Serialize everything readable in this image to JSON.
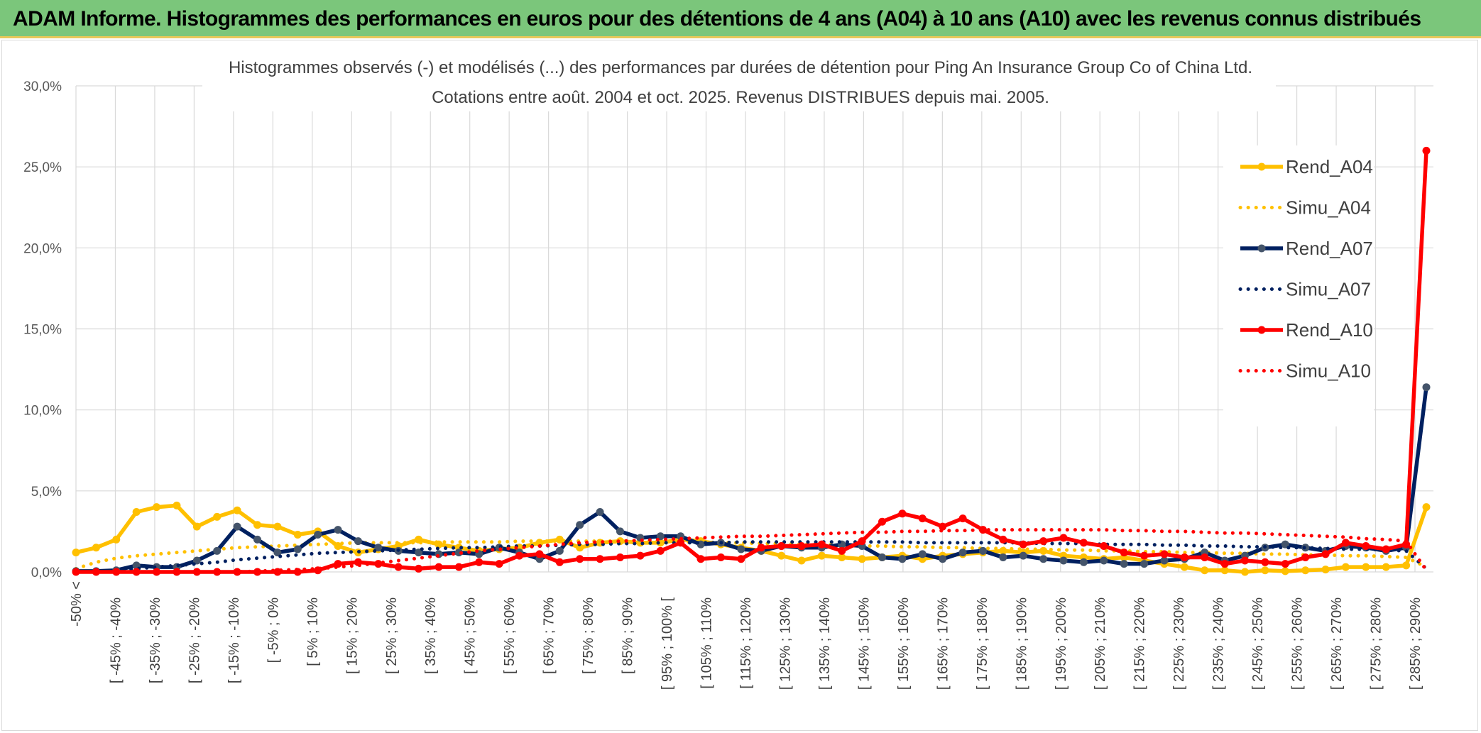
{
  "banner": {
    "title": "ADAM Informe. Histogrammes des performances en euros pour des détentions de 4 ans (A04) à 10 ans (A10) avec les revenus connus distribués"
  },
  "colors": {
    "banner_bg": "#7bc67b",
    "A04": "#ffc000",
    "A07": "#002060",
    "A10": "#ff0000",
    "grid": "#d9d9d9"
  },
  "chart_data": {
    "type": "line",
    "title": "Histogrammes observés (-) et modélisés (...) des performances par durées de détention pour Ping An Insurance Group Co of China Ltd.",
    "subtitle": "Cotations entre août. 2004 et oct. 2025. Revenus DISTRIBUES depuis mai. 2005.",
    "xlabel": "",
    "ylabel": "",
    "ylim": [
      0,
      30
    ],
    "yticks": [
      "0,0%",
      "5,0%",
      "10,0%",
      "15,0%",
      "20,0%",
      "25,0%",
      "30,0%"
    ],
    "grid": true,
    "legend_position": "right",
    "x_labels": [
      "-50% <",
      "[ -45% ; -40%",
      "[ -35% ; -30%",
      "[ -25% ; -20%",
      "[ -15% ; -10%",
      "[ -5% ; 0%",
      "[ 5% ; 10%",
      "[ 15% ; 20%",
      "[ 25% ; 30%",
      "[ 35% ; 40%",
      "[ 45% ; 50%",
      "[ 55% ; 60%",
      "[ 65% ; 70%",
      "[ 75% ; 80%",
      "[ 85% ; 90%",
      "[ 95% ; 100% [",
      "[ 105% ; 110%",
      "[ 115% ; 120%",
      "[ 125% ; 130%",
      "[ 135% ; 140%",
      "[ 145% ; 150%",
      "[ 155% ; 160%",
      "[ 165% ; 170%",
      "[ 175% ; 180%",
      "[ 185% ; 190%",
      "[ 195% ; 200%",
      "[ 205% ; 210%",
      "[ 215% ; 220%",
      "[ 225% ; 230%",
      "[ 235% ; 240%",
      "[ 245% ; 250%",
      "[ 255% ; 260%",
      "[ 265% ; 270%",
      "[ 275% ; 280%",
      "[ 285% ; 290%"
    ],
    "series": [
      {
        "name": "Rend_A04",
        "style": "solid",
        "color": "#ffc000",
        "values": [
          1.2,
          1.5,
          2.0,
          3.7,
          4.0,
          4.1,
          2.8,
          3.4,
          3.8,
          2.9,
          2.8,
          2.3,
          2.5,
          1.6,
          1.2,
          1.4,
          1.6,
          2.0,
          1.7,
          1.5,
          1.3,
          1.4,
          1.5,
          1.8,
          2.0,
          1.5,
          1.8,
          1.9,
          1.8,
          1.8,
          2.0,
          1.9,
          1.7,
          1.5,
          1.3,
          1.0,
          0.7,
          1.0,
          0.9,
          0.8,
          0.9,
          1.0,
          0.8,
          1.0,
          1.1,
          1.2,
          1.3,
          1.2,
          1.3,
          1.0,
          0.9,
          0.8,
          0.9,
          0.7,
          0.5,
          0.3,
          0.1,
          0.1,
          0.0,
          0.1,
          0.05,
          0.1,
          0.15,
          0.3,
          0.3,
          0.3,
          0.4,
          4.0
        ]
      },
      {
        "name": "Simu_A04",
        "style": "dotted",
        "color": "#ffc000",
        "values": [
          0.2,
          0.6,
          0.85,
          1.0,
          1.1,
          1.2,
          1.3,
          1.4,
          1.5,
          1.55,
          1.6,
          1.65,
          1.7,
          1.75,
          1.8,
          1.8,
          1.8,
          1.8,
          1.85,
          1.85,
          1.85,
          1.85,
          1.9,
          1.9,
          1.9,
          1.9,
          1.9,
          1.9,
          1.9,
          1.9,
          1.85,
          1.85,
          1.8,
          1.8,
          1.75,
          1.75,
          1.7,
          1.7,
          1.65,
          1.6,
          1.6,
          1.55,
          1.55,
          1.5,
          1.5,
          1.45,
          1.45,
          1.4,
          1.4,
          1.35,
          1.35,
          1.3,
          1.3,
          1.25,
          1.25,
          1.2,
          1.2,
          1.15,
          1.15,
          1.1,
          1.1,
          1.05,
          1.05,
          1.0,
          1.0,
          0.95,
          0.9,
          0.3
        ]
      },
      {
        "name": "Rend_A07",
        "style": "solid",
        "color": "#002060",
        "values": [
          0.05,
          0.05,
          0.1,
          0.4,
          0.3,
          0.3,
          0.7,
          1.3,
          2.8,
          2.0,
          1.2,
          1.4,
          2.3,
          2.6,
          1.9,
          1.5,
          1.3,
          1.2,
          1.1,
          1.2,
          1.1,
          1.5,
          1.2,
          0.8,
          1.3,
          2.9,
          3.7,
          2.5,
          2.1,
          2.2,
          2.2,
          1.7,
          1.8,
          1.4,
          1.3,
          1.6,
          1.5,
          1.5,
          1.7,
          1.6,
          0.9,
          0.8,
          1.1,
          0.8,
          1.2,
          1.3,
          0.9,
          1.0,
          0.8,
          0.7,
          0.6,
          0.7,
          0.5,
          0.5,
          0.7,
          0.8,
          1.2,
          0.7,
          1.0,
          1.5,
          1.7,
          1.5,
          1.3,
          1.6,
          1.5,
          1.3,
          1.5,
          11.4
        ]
      },
      {
        "name": "Simu_A07",
        "style": "dotted",
        "color": "#002060",
        "values": [
          0.0,
          0.05,
          0.1,
          0.2,
          0.3,
          0.4,
          0.5,
          0.6,
          0.75,
          0.85,
          0.95,
          1.05,
          1.15,
          1.2,
          1.25,
          1.3,
          1.35,
          1.4,
          1.45,
          1.5,
          1.5,
          1.55,
          1.6,
          1.6,
          1.65,
          1.7,
          1.7,
          1.75,
          1.75,
          1.8,
          1.8,
          1.8,
          1.8,
          1.85,
          1.85,
          1.85,
          1.85,
          1.85,
          1.85,
          1.85,
          1.85,
          1.85,
          1.8,
          1.8,
          1.8,
          1.8,
          1.8,
          1.8,
          1.75,
          1.75,
          1.75,
          1.7,
          1.7,
          1.7,
          1.65,
          1.65,
          1.6,
          1.6,
          1.55,
          1.55,
          1.5,
          1.5,
          1.45,
          1.4,
          1.4,
          1.35,
          1.3,
          0.2
        ]
      },
      {
        "name": "Rend_A10",
        "style": "solid",
        "color": "#ff0000",
        "values": [
          0.0,
          0.0,
          0.0,
          0.0,
          0.0,
          0.0,
          0.0,
          0.0,
          0.0,
          0.0,
          0.0,
          0.0,
          0.1,
          0.5,
          0.6,
          0.5,
          0.3,
          0.2,
          0.3,
          0.3,
          0.6,
          0.5,
          1.0,
          1.1,
          0.6,
          0.8,
          0.8,
          0.9,
          1.0,
          1.3,
          1.8,
          0.8,
          0.9,
          0.8,
          1.5,
          1.6,
          1.6,
          1.7,
          1.3,
          1.9,
          3.1,
          3.6,
          3.3,
          2.8,
          3.3,
          2.6,
          2.0,
          1.7,
          1.9,
          2.1,
          1.8,
          1.6,
          1.2,
          1.0,
          1.1,
          0.9,
          0.9,
          0.5,
          0.7,
          0.6,
          0.5,
          0.9,
          1.1,
          1.8,
          1.6,
          1.4,
          1.7,
          26.0
        ]
      },
      {
        "name": "Simu_A10",
        "style": "dotted",
        "color": "#ff0000",
        "values": [
          0.0,
          0.0,
          0.0,
          0.0,
          0.0,
          0.0,
          0.0,
          0.0,
          0.0,
          0.05,
          0.1,
          0.15,
          0.2,
          0.3,
          0.4,
          0.55,
          0.7,
          0.85,
          1.0,
          1.15,
          1.3,
          1.4,
          1.5,
          1.6,
          1.7,
          1.8,
          1.85,
          1.9,
          1.95,
          2.0,
          2.05,
          2.1,
          2.15,
          2.2,
          2.2,
          2.25,
          2.3,
          2.35,
          2.4,
          2.45,
          2.45,
          2.5,
          2.5,
          2.55,
          2.55,
          2.6,
          2.6,
          2.6,
          2.6,
          2.6,
          2.6,
          2.6,
          2.55,
          2.55,
          2.5,
          2.5,
          2.45,
          2.4,
          2.4,
          2.35,
          2.3,
          2.25,
          2.2,
          2.15,
          2.05,
          2.0,
          1.9,
          0.1
        ]
      }
    ]
  }
}
